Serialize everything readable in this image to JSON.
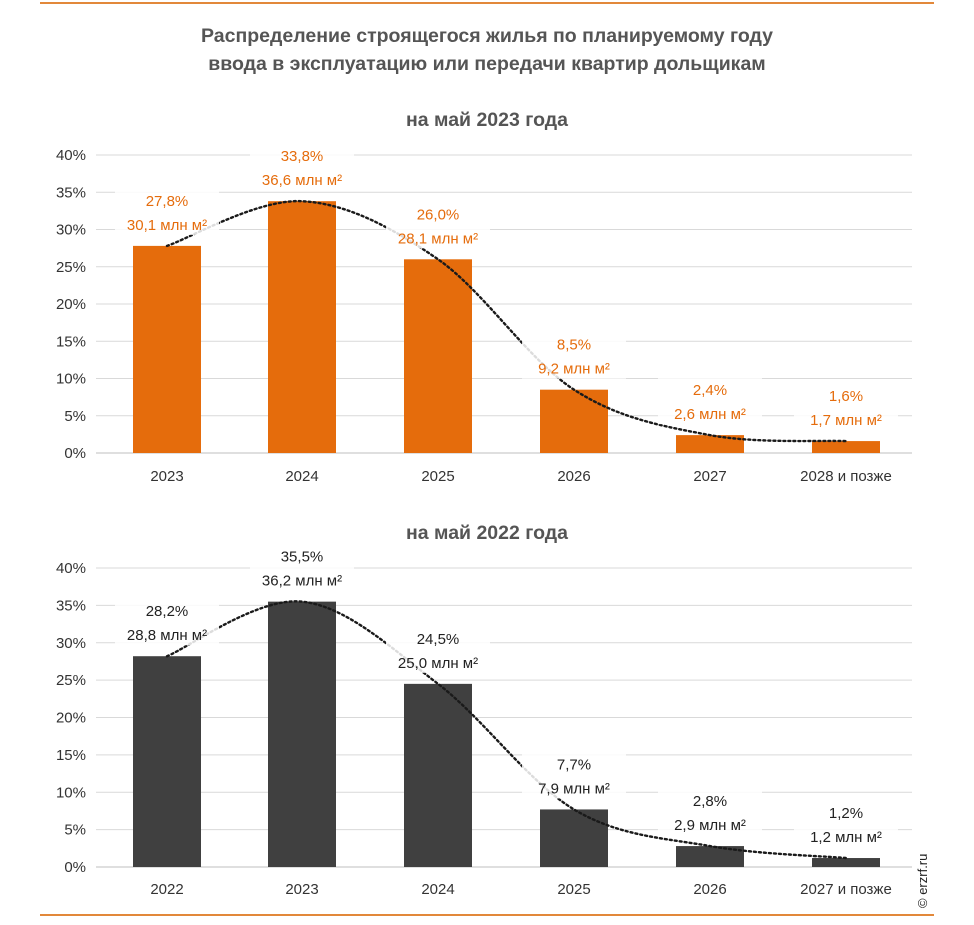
{
  "title": {
    "line1": "Распределение строящегося жилья по планируемому году",
    "line2": "ввода в эксплуатацию или передачи квартир дольщикам"
  },
  "copyright": "© erzrf.ru",
  "colors": {
    "accent": "#e56c0c",
    "dark": "#404040",
    "rule": "#e2883a"
  },
  "chart_data": [
    {
      "type": "bar",
      "title": "на май 2023 года",
      "categories": [
        "2023",
        "2024",
        "2025",
        "2026",
        "2027",
        "2028 и позже"
      ],
      "values": [
        27.8,
        33.8,
        26.0,
        8.5,
        2.4,
        1.6
      ],
      "percent_labels": [
        "27,8%",
        "33,8%",
        "26,0%",
        "8,5%",
        "2,4%",
        "1,6%"
      ],
      "area_labels": [
        "30,1 млн м²",
        "36,6 млн м²",
        "28,1 млн м²",
        "9,2 млн м²",
        "2,6 млн м²",
        "1,7 млн м²"
      ],
      "y_ticks": [
        "0%",
        "5%",
        "10%",
        "15%",
        "20%",
        "25%",
        "30%",
        "35%",
        "40%"
      ],
      "ylim": [
        0,
        40
      ],
      "grid": true,
      "trendline": "dotted",
      "bar_color": "#e56c0c",
      "label_color": "#e56c0c"
    },
    {
      "type": "bar",
      "title": "на май 2022 года",
      "categories": [
        "2022",
        "2023",
        "2024",
        "2025",
        "2026",
        "2027 и позже"
      ],
      "values": [
        28.2,
        35.5,
        24.5,
        7.7,
        2.8,
        1.2
      ],
      "percent_labels": [
        "28,2%",
        "35,5%",
        "24,5%",
        "7,7%",
        "2,8%",
        "1,2%"
      ],
      "area_labels": [
        "28,8 млн м²",
        "36,2 млн м²",
        "25,0 млн м²",
        "7,9 млн м²",
        "2,9 млн м²",
        "1,2 млн м²"
      ],
      "y_ticks": [
        "0%",
        "5%",
        "10%",
        "15%",
        "20%",
        "25%",
        "30%",
        "35%",
        "40%"
      ],
      "ylim": [
        0,
        40
      ],
      "grid": true,
      "trendline": "dotted",
      "bar_color": "#404040",
      "label_color": "#222222"
    }
  ]
}
